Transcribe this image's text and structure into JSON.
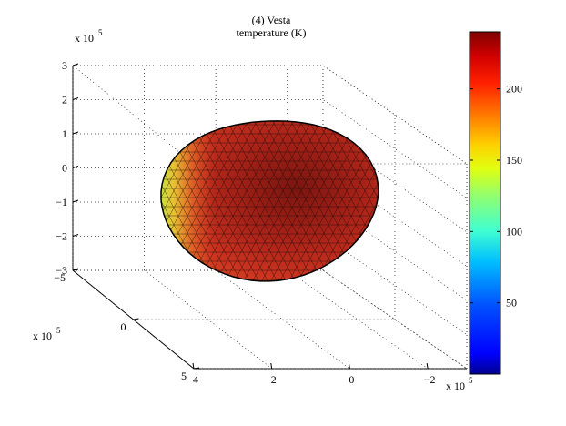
{
  "chart_data": {
    "type": "surface3d",
    "title": "(4) Vesta",
    "subtitle": "temperature (K)",
    "axes": {
      "x": {
        "multiplier_base": "x 10",
        "multiplier_exp": "5",
        "range": [
          -300000,
          400000
        ],
        "ticks": [
          {
            "value": 400000,
            "label": "4"
          },
          {
            "value": 200000,
            "label": "2"
          },
          {
            "value": 0,
            "label": "0"
          },
          {
            "value": -200000,
            "label": "−2"
          }
        ]
      },
      "y": {
        "multiplier_base": "x 10",
        "multiplier_exp": "5",
        "range": [
          -500000,
          500000
        ],
        "ticks": [
          {
            "value": -500000,
            "label": "−5"
          },
          {
            "value": 0,
            "label": "0"
          },
          {
            "value": 500000,
            "label": "5"
          }
        ]
      },
      "z": {
        "multiplier_base": "x 10",
        "multiplier_exp": "5",
        "range": [
          -300000,
          300000
        ],
        "ticks": [
          {
            "value": 300000,
            "label": "3"
          },
          {
            "value": 200000,
            "label": "2"
          },
          {
            "value": 100000,
            "label": "1"
          },
          {
            "value": 0,
            "label": "0"
          },
          {
            "value": -100000,
            "label": "−1"
          },
          {
            "value": -200000,
            "label": "−2"
          },
          {
            "value": -300000,
            "label": "−3"
          }
        ]
      }
    },
    "grid": true,
    "colorbar": {
      "colormap": "jet",
      "range": [
        0,
        240
      ],
      "ticks": [
        {
          "value": 50,
          "label": "50"
        },
        {
          "value": 100,
          "label": "100"
        },
        {
          "value": 150,
          "label": "150"
        },
        {
          "value": 200,
          "label": "200"
        }
      ]
    },
    "surface": {
      "object": "triangulated ellipsoid",
      "temperature_min": 150,
      "temperature_max": 240,
      "hot_color": "#8a1a10",
      "cold_limb_color": "#c8e040"
    }
  }
}
